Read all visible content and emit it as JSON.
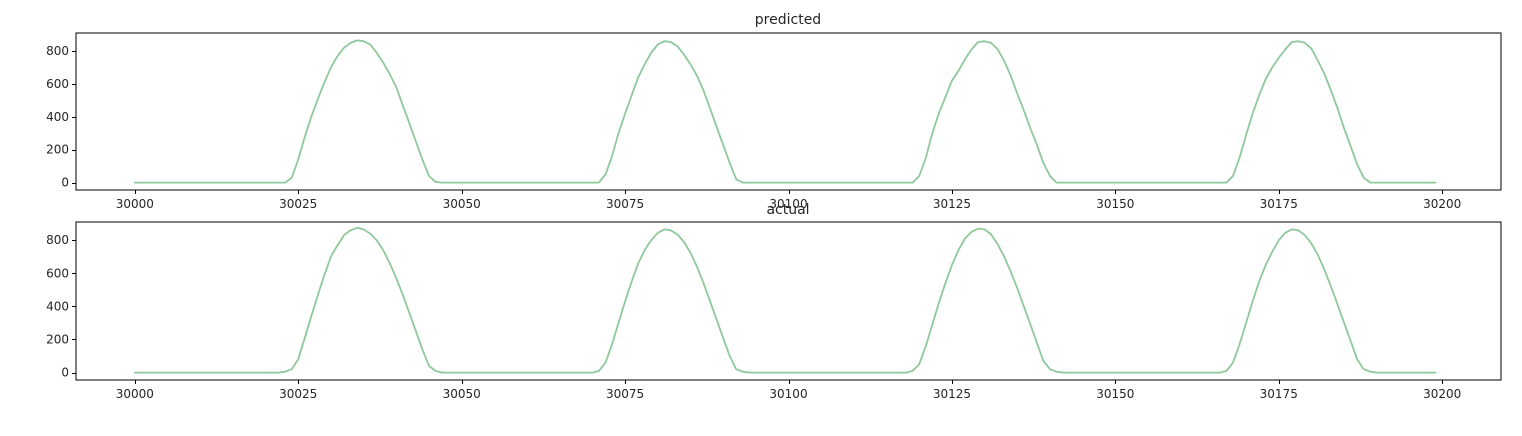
{
  "colors": {
    "series": "#8fc89b",
    "axes": "#000000",
    "text": "#262626",
    "background": "#ffffff"
  },
  "chart_data": [
    {
      "type": "line",
      "title": "predicted",
      "xlabel": "",
      "ylabel": "",
      "xlim": [
        29991,
        30209
      ],
      "ylim": [
        -45,
        910
      ],
      "xticks": [
        30000,
        30025,
        30050,
        30075,
        30100,
        30125,
        30150,
        30175,
        30200
      ],
      "yticks": [
        0,
        200,
        400,
        600,
        800
      ],
      "grid": false,
      "series": [
        {
          "name": "predicted",
          "x": [
            30000,
            30023,
            30024,
            30025,
            30026,
            30027,
            30028,
            30029,
            30030,
            30031,
            30032,
            30033,
            30034,
            30035,
            30036,
            30037,
            30038,
            30039,
            30040,
            30041,
            30042,
            30043,
            30044,
            30045,
            30046,
            30047,
            30071,
            30072,
            30073,
            30074,
            30075,
            30076,
            30077,
            30078,
            30079,
            30080,
            30081,
            30082,
            30083,
            30084,
            30085,
            30086,
            30087,
            30088,
            30089,
            30090,
            30091,
            30092,
            30093,
            30094,
            30095,
            30119,
            30120,
            30121,
            30122,
            30123,
            30124,
            30125,
            30126,
            30127,
            30128,
            30129,
            30130,
            30131,
            30132,
            30133,
            30134,
            30135,
            30136,
            30137,
            30138,
            30139,
            30140,
            30141,
            30142,
            30143,
            30167,
            30168,
            30169,
            30170,
            30171,
            30172,
            30173,
            30174,
            30175,
            30176,
            30177,
            30178,
            30179,
            30180,
            30181,
            30182,
            30183,
            30184,
            30185,
            30186,
            30187,
            30188,
            30189,
            30190,
            30191,
            30199
          ],
          "y": [
            0,
            0,
            30,
            140,
            280,
            400,
            510,
            610,
            700,
            770,
            820,
            850,
            865,
            860,
            840,
            790,
            730,
            660,
            580,
            470,
            360,
            250,
            140,
            40,
            5,
            0,
            0,
            50,
            160,
            300,
            420,
            530,
            640,
            720,
            790,
            840,
            860,
            855,
            830,
            780,
            720,
            650,
            560,
            450,
            340,
            230,
            120,
            20,
            0,
            0,
            0,
            0,
            40,
            150,
            300,
            420,
            520,
            620,
            680,
            750,
            810,
            855,
            860,
            850,
            810,
            740,
            650,
            540,
            440,
            330,
            230,
            120,
            40,
            0,
            0,
            0,
            0,
            40,
            150,
            290,
            420,
            530,
            630,
            700,
            760,
            810,
            855,
            860,
            850,
            815,
            740,
            660,
            560,
            450,
            330,
            220,
            110,
            30,
            0,
            0,
            0,
            0
          ]
        }
      ]
    },
    {
      "type": "line",
      "title": "actual",
      "xlabel": "",
      "ylabel": "",
      "xlim": [
        29991,
        30209
      ],
      "ylim": [
        -45,
        910
      ],
      "xticks": [
        30000,
        30025,
        30050,
        30075,
        30100,
        30125,
        30150,
        30175,
        30200
      ],
      "yticks": [
        0,
        200,
        400,
        600,
        800
      ],
      "grid": false,
      "series": [
        {
          "name": "actual",
          "x": [
            30000,
            30022,
            30023,
            30024,
            30025,
            30026,
            30027,
            30028,
            30029,
            30030,
            30031,
            30032,
            30033,
            30034,
            30035,
            30036,
            30037,
            30038,
            30039,
            30040,
            30041,
            30042,
            30043,
            30044,
            30045,
            30046,
            30047,
            30070,
            30071,
            30072,
            30073,
            30074,
            30075,
            30076,
            30077,
            30078,
            30079,
            30080,
            30081,
            30082,
            30083,
            30084,
            30085,
            30086,
            30087,
            30088,
            30089,
            30090,
            30091,
            30092,
            30093,
            30094,
            30095,
            30118,
            30119,
            30120,
            30121,
            30122,
            30123,
            30124,
            30125,
            30126,
            30127,
            30128,
            30129,
            30130,
            30131,
            30132,
            30133,
            30134,
            30135,
            30136,
            30137,
            30138,
            30139,
            30140,
            30141,
            30142,
            30143,
            30166,
            30167,
            30168,
            30169,
            30170,
            30171,
            30172,
            30173,
            30174,
            30175,
            30176,
            30177,
            30178,
            30179,
            30180,
            30181,
            30182,
            30183,
            30184,
            30185,
            30186,
            30187,
            30188,
            30189,
            30190,
            30191,
            30199
          ],
          "y": [
            0,
            0,
            5,
            20,
            80,
            210,
            340,
            470,
            590,
            700,
            770,
            830,
            860,
            875,
            865,
            840,
            800,
            740,
            660,
            570,
            470,
            360,
            250,
            140,
            40,
            10,
            0,
            0,
            10,
            60,
            170,
            300,
            430,
            550,
            660,
            740,
            800,
            845,
            865,
            860,
            835,
            790,
            725,
            640,
            540,
            430,
            320,
            210,
            100,
            20,
            5,
            0,
            0,
            0,
            10,
            50,
            160,
            290,
            420,
            540,
            650,
            740,
            810,
            850,
            870,
            865,
            835,
            775,
            700,
            610,
            510,
            400,
            290,
            180,
            70,
            20,
            5,
            0,
            0,
            0,
            10,
            60,
            170,
            300,
            430,
            550,
            650,
            730,
            800,
            845,
            865,
            860,
            830,
            780,
            710,
            620,
            520,
            410,
            300,
            190,
            80,
            20,
            5,
            0,
            0,
            0
          ]
        }
      ]
    }
  ]
}
